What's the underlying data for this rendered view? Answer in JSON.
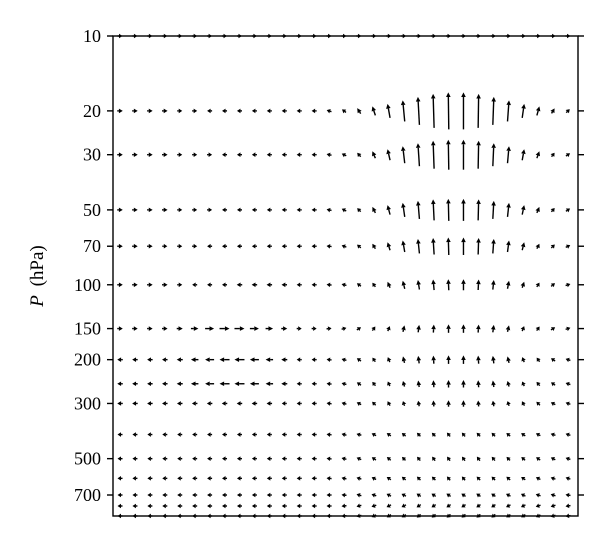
{
  "chart_data": {
    "type": "vector-field",
    "title": "",
    "xlabel": "",
    "ylabel_italic": "P",
    "ylabel_units": "(hPa)",
    "y_scale": "log",
    "y_inverted": true,
    "ylim": [
      10,
      850
    ],
    "y_ticks": [
      10,
      20,
      30,
      50,
      70,
      100,
      150,
      200,
      300,
      500,
      700
    ],
    "x_ticks_shown": false,
    "x_columns": 31,
    "pressure_levels": [
      10,
      20,
      30,
      50,
      70,
      100,
      150,
      200,
      250,
      300,
      400,
      500,
      600,
      700,
      775,
      850
    ],
    "grid": false,
    "legend": "none",
    "vector_color": "#000000",
    "description_u": "horizontal component, relative units; +1 = rightward arrow of unit length",
    "description_w": "vertical component, relative units; +1 = upward arrow of unit length",
    "u_rows": [
      [
        0.4,
        0.4,
        0.4,
        0.4,
        0.4,
        0.4,
        0.4,
        0.4,
        0.4,
        0.4,
        0.4,
        0.4,
        0.4,
        0.4,
        0.4,
        0.4,
        0.4,
        0.4,
        0.4,
        0.4,
        0.4,
        0.4,
        0.4,
        0.4,
        0.4,
        0.4,
        0.4,
        0.4,
        0.4,
        0.4,
        0.4
      ],
      [
        0.55,
        0.55,
        0.55,
        0.55,
        0.45,
        0.3,
        -0.25,
        -0.4,
        -0.45,
        -0.5,
        -0.5,
        -0.5,
        -0.5,
        -0.5,
        -0.45,
        -0.4,
        -0.35,
        -0.3,
        -0.25,
        -0.2,
        -0.15,
        -0.1,
        -0.05,
        0,
        0.05,
        0.1,
        0.15,
        0.2,
        0.25,
        0.3,
        0.3
      ],
      [
        0.55,
        0.55,
        0.55,
        0.55,
        0.45,
        0.3,
        0.2,
        -0.4,
        -0.45,
        -0.5,
        -0.5,
        -0.5,
        -0.5,
        -0.5,
        -0.45,
        -0.4,
        -0.35,
        -0.3,
        -0.25,
        -0.2,
        -0.15,
        -0.1,
        -0.05,
        0,
        0.05,
        0.1,
        0.15,
        0.2,
        0.25,
        0.3,
        0.3
      ],
      [
        0.55,
        0.55,
        0.55,
        0.55,
        0.45,
        0.35,
        0.2,
        -0.4,
        -0.45,
        -0.5,
        -0.5,
        -0.5,
        -0.5,
        -0.5,
        -0.45,
        -0.4,
        -0.35,
        -0.3,
        -0.25,
        -0.2,
        -0.15,
        -0.1,
        -0.05,
        0,
        0.05,
        0.1,
        0.15,
        0.2,
        0.25,
        0.3,
        0.3
      ],
      [
        0.55,
        0.55,
        0.55,
        0.5,
        0.45,
        0.3,
        -0.3,
        -0.4,
        -0.45,
        -0.5,
        -0.5,
        -0.5,
        -0.5,
        -0.5,
        -0.45,
        -0.4,
        -0.35,
        -0.3,
        -0.25,
        -0.2,
        -0.15,
        -0.1,
        -0.05,
        0,
        0.05,
        0.1,
        0.15,
        0.2,
        0.25,
        0.3,
        0.3
      ],
      [
        0.55,
        0.55,
        0.55,
        0.55,
        0.5,
        -0.35,
        -0.45,
        -0.5,
        -0.55,
        -0.55,
        -0.55,
        -0.55,
        -0.5,
        -0.5,
        -0.45,
        -0.4,
        -0.35,
        -0.3,
        -0.25,
        -0.2,
        -0.15,
        -0.1,
        -0.05,
        0,
        0.05,
        0.1,
        0.15,
        0.2,
        0.25,
        0.3,
        0.3
      ],
      [
        0.55,
        0.55,
        0.55,
        0.55,
        0.6,
        0.75,
        0.9,
        1.0,
        1.0,
        0.9,
        0.75,
        0.6,
        0.5,
        0.45,
        0.4,
        0.35,
        0.3,
        0.25,
        0.2,
        0.15,
        0.1,
        0.05,
        0,
        0,
        0.05,
        0.1,
        0.15,
        0.2,
        0.25,
        0.3,
        0.3
      ],
      [
        -0.55,
        -0.55,
        -0.55,
        -0.55,
        -0.6,
        -0.75,
        -0.9,
        -1.0,
        -1.0,
        -0.9,
        -0.75,
        -0.6,
        -0.5,
        -0.45,
        -0.4,
        -0.35,
        -0.3,
        -0.25,
        -0.2,
        -0.15,
        -0.1,
        -0.05,
        0,
        0,
        -0.05,
        -0.1,
        -0.15,
        -0.2,
        -0.25,
        -0.3,
        -0.3
      ],
      [
        -0.55,
        -0.55,
        -0.55,
        -0.55,
        -0.6,
        -0.75,
        -0.9,
        -1.0,
        -1.0,
        -0.9,
        -0.75,
        -0.6,
        -0.5,
        -0.45,
        -0.4,
        -0.35,
        -0.3,
        -0.25,
        -0.2,
        -0.15,
        -0.1,
        -0.05,
        0,
        0,
        -0.05,
        -0.1,
        -0.15,
        -0.2,
        -0.25,
        -0.3,
        -0.3
      ],
      [
        -0.55,
        -0.55,
        -0.55,
        -0.55,
        -0.55,
        -0.55,
        -0.55,
        -0.55,
        -0.55,
        -0.55,
        -0.55,
        -0.5,
        -0.5,
        -0.45,
        -0.4,
        -0.35,
        -0.3,
        -0.25,
        -0.2,
        -0.15,
        -0.1,
        -0.05,
        0,
        0,
        -0.05,
        -0.1,
        -0.15,
        -0.2,
        -0.25,
        -0.3,
        -0.3
      ],
      [
        -0.5,
        -0.5,
        -0.5,
        -0.5,
        -0.5,
        -0.5,
        -0.5,
        -0.5,
        -0.5,
        -0.5,
        -0.5,
        -0.5,
        -0.5,
        -0.5,
        -0.45,
        -0.4,
        -0.35,
        -0.3,
        -0.3,
        -0.3,
        -0.3,
        -0.3,
        -0.3,
        -0.3,
        -0.3,
        -0.3,
        -0.3,
        -0.3,
        -0.3,
        -0.3,
        -0.3
      ],
      [
        -0.5,
        -0.5,
        -0.5,
        -0.5,
        -0.5,
        -0.5,
        -0.5,
        -0.5,
        -0.5,
        -0.5,
        -0.5,
        -0.5,
        -0.5,
        -0.5,
        -0.45,
        -0.4,
        -0.35,
        -0.3,
        -0.3,
        -0.3,
        -0.3,
        -0.3,
        -0.3,
        -0.3,
        -0.3,
        -0.3,
        -0.3,
        -0.3,
        -0.3,
        -0.3,
        -0.3
      ],
      [
        -0.5,
        -0.5,
        -0.5,
        -0.5,
        -0.5,
        -0.5,
        -0.5,
        -0.5,
        -0.5,
        -0.5,
        -0.5,
        -0.5,
        -0.5,
        -0.5,
        -0.45,
        -0.4,
        -0.35,
        -0.3,
        -0.3,
        -0.3,
        -0.3,
        -0.3,
        -0.3,
        -0.3,
        -0.3,
        -0.3,
        -0.3,
        -0.3,
        -0.3,
        -0.3,
        -0.3
      ],
      [
        -0.5,
        -0.5,
        -0.5,
        -0.5,
        -0.5,
        -0.5,
        -0.5,
        -0.5,
        -0.5,
        -0.5,
        -0.5,
        -0.5,
        -0.5,
        -0.5,
        -0.45,
        -0.4,
        -0.35,
        -0.3,
        -0.3,
        -0.3,
        -0.3,
        -0.3,
        -0.3,
        -0.3,
        -0.3,
        -0.3,
        -0.3,
        -0.3,
        -0.3,
        -0.3,
        -0.3
      ],
      [
        -0.5,
        -0.5,
        -0.5,
        -0.5,
        -0.5,
        -0.5,
        -0.5,
        -0.5,
        -0.5,
        -0.5,
        -0.5,
        -0.5,
        -0.5,
        -0.5,
        -0.45,
        -0.4,
        -0.35,
        -0.3,
        -0.3,
        -0.3,
        -0.3,
        -0.3,
        -0.3,
        -0.3,
        -0.3,
        -0.3,
        -0.3,
        -0.3,
        -0.3,
        -0.3,
        -0.3
      ],
      [
        -0.5,
        -0.5,
        -0.5,
        -0.5,
        -0.5,
        -0.5,
        -0.5,
        -0.5,
        -0.5,
        -0.5,
        -0.5,
        -0.5,
        -0.5,
        -0.5,
        -0.45,
        -0.4,
        -0.35,
        -0.3,
        -0.3,
        -0.3,
        -0.3,
        -0.3,
        -0.3,
        -0.3,
        -0.3,
        -0.3,
        -0.3,
        -0.3,
        -0.3,
        -0.3,
        -0.3
      ]
    ],
    "w_rows": [
      [
        0,
        0,
        0,
        0,
        0,
        0,
        0,
        0,
        0,
        0,
        0,
        0,
        0,
        0,
        0,
        0,
        0,
        0,
        0,
        0,
        0,
        0,
        0,
        0,
        0,
        0,
        0,
        0,
        0,
        0,
        0
      ],
      [
        0,
        0,
        0,
        0,
        0,
        0,
        0,
        0,
        0,
        0,
        0,
        0,
        0,
        0,
        0.15,
        0.3,
        0.55,
        0.9,
        1.4,
        2.1,
        2.8,
        3.4,
        3.7,
        3.7,
        3.4,
        2.8,
        2.1,
        1.4,
        0.9,
        0.5,
        0.3
      ],
      [
        0,
        0,
        0,
        0,
        0,
        0,
        0,
        0,
        0,
        0,
        0,
        0,
        0,
        0,
        0.1,
        0.2,
        0.4,
        0.7,
        1.1,
        1.7,
        2.3,
        2.8,
        3.0,
        3.0,
        2.8,
        2.3,
        1.7,
        1.1,
        0.7,
        0.4,
        0.2
      ],
      [
        0,
        0,
        0,
        0,
        0,
        0,
        0,
        0,
        0,
        0,
        0,
        0,
        0,
        0,
        0.1,
        0.2,
        0.35,
        0.6,
        0.95,
        1.4,
        1.8,
        2.1,
        2.2,
        2.2,
        2.1,
        1.8,
        1.4,
        0.95,
        0.6,
        0.35,
        0.2
      ],
      [
        0,
        0,
        0,
        0,
        0,
        0,
        0,
        0,
        0,
        0,
        0,
        0,
        0,
        0,
        0.05,
        0.15,
        0.3,
        0.5,
        0.8,
        1.15,
        1.45,
        1.65,
        1.75,
        1.75,
        1.65,
        1.45,
        1.15,
        0.8,
        0.5,
        0.3,
        0.15
      ],
      [
        0,
        0,
        0,
        0,
        0,
        0,
        0,
        0,
        0,
        0,
        0,
        0,
        0,
        0,
        0.05,
        0.1,
        0.25,
        0.4,
        0.6,
        0.8,
        0.95,
        1.05,
        1.1,
        1.1,
        1.05,
        0.95,
        0.8,
        0.6,
        0.4,
        0.25,
        0.1
      ],
      [
        0,
        0,
        0,
        0,
        0,
        0,
        0,
        0,
        0,
        0,
        0,
        0,
        0,
        0,
        0.05,
        0.1,
        0.2,
        0.35,
        0.5,
        0.65,
        0.75,
        0.8,
        0.85,
        0.85,
        0.8,
        0.75,
        0.65,
        0.5,
        0.35,
        0.2,
        0.1
      ],
      [
        0,
        0,
        0,
        0,
        0,
        0,
        0,
        0,
        0,
        0,
        0,
        0,
        0,
        0,
        0.05,
        0.1,
        0.2,
        0.35,
        0.5,
        0.65,
        0.75,
        0.8,
        0.85,
        0.85,
        0.8,
        0.75,
        0.65,
        0.5,
        0.35,
        0.2,
        0.1
      ],
      [
        0,
        0,
        0,
        0,
        0,
        0,
        0,
        0,
        0,
        0,
        0,
        0,
        0,
        0,
        0.05,
        0.1,
        0.2,
        0.3,
        0.45,
        0.55,
        0.65,
        0.7,
        0.75,
        0.75,
        0.7,
        0.65,
        0.55,
        0.45,
        0.3,
        0.2,
        0.1
      ],
      [
        0,
        0,
        0,
        0,
        0,
        0,
        0,
        0,
        0,
        0,
        0,
        0,
        0,
        0,
        0.05,
        0.1,
        0.15,
        0.25,
        0.35,
        0.45,
        0.55,
        0.6,
        0.65,
        0.65,
        0.6,
        0.55,
        0.45,
        0.35,
        0.25,
        0.15,
        0.1
      ],
      [
        0,
        0,
        0,
        0,
        0,
        0,
        0,
        0,
        0,
        0,
        0,
        0,
        0,
        0,
        0.05,
        0.1,
        0.1,
        0.15,
        0.2,
        0.25,
        0.3,
        0.3,
        0.35,
        0.35,
        0.3,
        0.3,
        0.25,
        0.2,
        0.15,
        0.1,
        0.1
      ],
      [
        0,
        0,
        0,
        0,
        0,
        0,
        0,
        0,
        0,
        0,
        0,
        0,
        0,
        0,
        0.05,
        0.1,
        0.15,
        0.2,
        0.25,
        0.3,
        0.35,
        0.4,
        0.4,
        0.4,
        0.4,
        0.35,
        0.3,
        0.25,
        0.2,
        0.15,
        0.1
      ],
      [
        0,
        0,
        0,
        0,
        0,
        0,
        0,
        0,
        0,
        0,
        0,
        0,
        0,
        0,
        0.05,
        0.1,
        0.1,
        0.15,
        0.2,
        0.25,
        0.3,
        0.3,
        0.35,
        0.35,
        0.3,
        0.3,
        0.25,
        0.2,
        0.15,
        0.1,
        0.1
      ],
      [
        0,
        0,
        0,
        0,
        0,
        0,
        0,
        0,
        0,
        0,
        0,
        0,
        0,
        0,
        0,
        0.05,
        0.1,
        0.1,
        0.15,
        0.15,
        0.2,
        0.2,
        0.2,
        0.2,
        0.2,
        0.2,
        0.15,
        0.15,
        0.1,
        0.1,
        0.05
      ],
      [
        0,
        0,
        0,
        0,
        0,
        0,
        0,
        0,
        0,
        0,
        0,
        0,
        0,
        0,
        0,
        -0.05,
        -0.1,
        -0.1,
        -0.15,
        -0.15,
        -0.2,
        -0.2,
        -0.2,
        -0.2,
        -0.2,
        -0.2,
        -0.15,
        -0.15,
        -0.1,
        -0.1,
        -0.05
      ],
      [
        0,
        0,
        0,
        0,
        0,
        0,
        0,
        0,
        0,
        0,
        0,
        0,
        0,
        0,
        0,
        -0.05,
        -0.1,
        -0.15,
        -0.2,
        -0.2,
        -0.25,
        -0.25,
        -0.25,
        -0.25,
        -0.25,
        -0.25,
        -0.2,
        -0.2,
        -0.15,
        -0.1,
        -0.05
      ]
    ]
  }
}
